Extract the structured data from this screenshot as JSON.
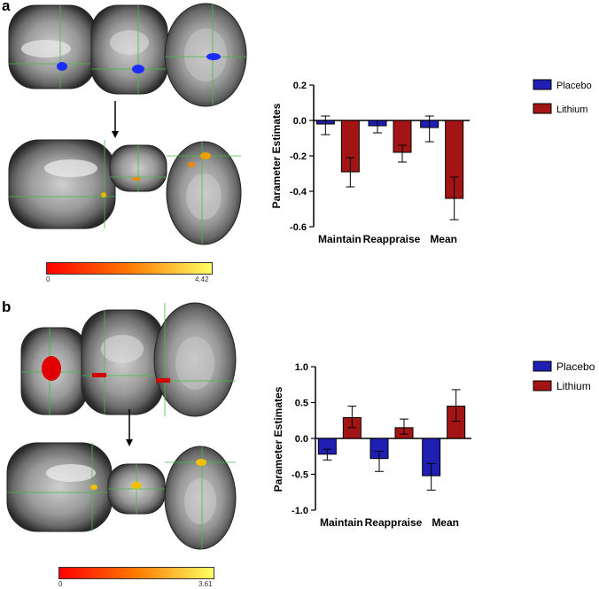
{
  "panels": [
    {
      "label": "a",
      "colorbar": {
        "min_label": "0",
        "max_label": "4.42"
      },
      "chart_data": {
        "type": "bar",
        "categories": [
          "Maintain",
          "Reappraise",
          "Mean"
        ],
        "ylabel": "Parameter Estimates",
        "xlabel": "",
        "ylim": [
          -0.6,
          0.2
        ],
        "yticks": [
          "0.2",
          "0.0",
          "-0.2",
          "-0.4",
          "-0.6"
        ],
        "ytick_values": [
          0.2,
          0.0,
          -0.2,
          -0.4,
          -0.6
        ],
        "legend_position": "top-right",
        "series": [
          {
            "name": "Placebo",
            "color": "#1f1fb4",
            "values": [
              -0.02,
              -0.03,
              -0.04
            ],
            "err_low": [
              -0.08,
              -0.07,
              -0.12
            ],
            "err_high": [
              0.025,
              0.0,
              0.025
            ]
          },
          {
            "name": "Lithium",
            "color": "#a31515",
            "values": [
              -0.29,
              -0.18,
              -0.44
            ],
            "err_low": [
              -0.375,
              -0.235,
              -0.56
            ],
            "err_high": [
              -0.21,
              -0.14,
              -0.32
            ]
          }
        ]
      }
    },
    {
      "label": "b",
      "colorbar": {
        "min_label": "0",
        "max_label": "3.61"
      },
      "chart_data": {
        "type": "bar",
        "categories": [
          "Maintain",
          "Reappraise",
          "Mean"
        ],
        "ylabel": "Parameter Estimates",
        "xlabel": "",
        "ylim": [
          -1.0,
          1.0
        ],
        "yticks": [
          "1.0",
          "0.5",
          "0.0",
          "-0.5",
          "-1.0"
        ],
        "ytick_values": [
          1.0,
          0.5,
          0.0,
          -0.5,
          -1.0
        ],
        "legend_position": "top-right",
        "series": [
          {
            "name": "Placebo",
            "color": "#1f1fb4",
            "values": [
              -0.22,
              -0.28,
              -0.52
            ],
            "err_low": [
              -0.3,
              -0.46,
              -0.72
            ],
            "err_high": [
              -0.15,
              -0.18,
              -0.35
            ]
          },
          {
            "name": "Lithium",
            "color": "#a31515",
            "values": [
              0.29,
              0.15,
              0.45
            ],
            "err_low": [
              0.15,
              0.06,
              0.24
            ],
            "err_high": [
              0.45,
              0.27,
              0.68
            ]
          }
        ]
      }
    }
  ]
}
